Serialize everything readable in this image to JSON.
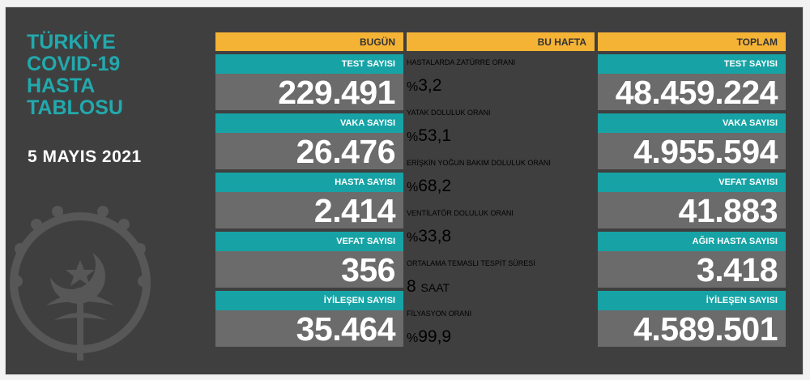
{
  "title_lines": [
    "TÜRKİYE",
    "COVID-19",
    "HASTA",
    "TABLOSU"
  ],
  "date": "5 MAYIS 2021",
  "colors": {
    "teal": "#17a3a5",
    "orange": "#f5b335",
    "panel": "#3f3f3f",
    "box": "#6b6b6b"
  },
  "today": {
    "header": "BUGÜN",
    "items": [
      {
        "label": "TEST SAYISI",
        "value": "229.491"
      },
      {
        "label": "VAKA SAYISI",
        "value": "26.476"
      },
      {
        "label": "HASTA SAYISI",
        "value": "2.414"
      },
      {
        "label": "VEFAT SAYISI",
        "value": "356"
      },
      {
        "label": "İYİLEŞEN SAYISI",
        "value": "35.464"
      }
    ]
  },
  "week": {
    "header": "BU HAFTA",
    "items": [
      {
        "label": "HASTALARDA ZATÜRRE ORANI",
        "prefix": "%",
        "value": "3,2",
        "suffix": ""
      },
      {
        "label": "YATAK DOLULUK ORANI",
        "prefix": "%",
        "value": "53,1",
        "suffix": ""
      },
      {
        "label": "ERİŞKİN YOĞUN BAKIM DOLULUK ORANI",
        "prefix": "%",
        "value": "68,2",
        "suffix": ""
      },
      {
        "label": "VENTİLATÖR DOLULUK ORANI",
        "prefix": "%",
        "value": "33,8",
        "suffix": ""
      },
      {
        "label": "ORTALAMA TEMASLI TESPİT SÜRESİ",
        "prefix": "",
        "value": "8",
        "suffix": "SAAT"
      },
      {
        "label": "FİLYASYON ORANI",
        "prefix": "%",
        "value": "99,9",
        "suffix": ""
      }
    ]
  },
  "total": {
    "header": "TOPLAM",
    "items": [
      {
        "label": "TEST SAYISI",
        "value": "48.459.224"
      },
      {
        "label": "VAKA SAYISI",
        "value": "4.955.594"
      },
      {
        "label": "VEFAT SAYISI",
        "value": "41.883"
      },
      {
        "label": "AĞIR HASTA SAYISI",
        "value": "3.418"
      },
      {
        "label": "İYİLEŞEN SAYISI",
        "value": "4.589.501"
      }
    ]
  }
}
